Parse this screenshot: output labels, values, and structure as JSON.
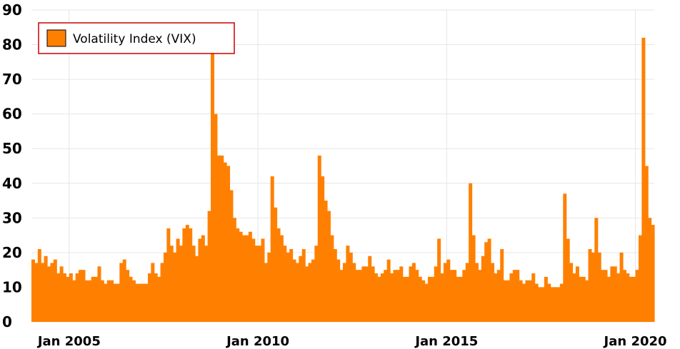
{
  "chart_data": {
    "type": "area",
    "title": "",
    "xlabel": "",
    "ylabel": "",
    "legend": {
      "placement": "top-left",
      "entries": [
        "Volatility Index (VIX)"
      ]
    },
    "grid": true,
    "ylim": [
      0,
      90
    ],
    "xlim": [
      "2004-01",
      "2020-06"
    ],
    "yticks": [
      "0",
      "10",
      "20",
      "30",
      "40",
      "50",
      "60",
      "70",
      "80",
      "90"
    ],
    "xticks": [
      {
        "label": "Jan 2005",
        "date": "2005-01"
      },
      {
        "label": "Jan 2010",
        "date": "2010-01"
      },
      {
        "label": "Jan 2015",
        "date": "2015-01"
      },
      {
        "label": "Jan 2020",
        "date": "2020-01"
      }
    ],
    "colors": {
      "series": "#ff8000",
      "legend_border": "#cc0000",
      "grid": "#e6e6e6"
    },
    "series": [
      {
        "name": "Volatility Index (VIX)",
        "x": [
          "2004-01",
          "2004-02",
          "2004-03",
          "2004-04",
          "2004-05",
          "2004-06",
          "2004-07",
          "2004-08",
          "2004-09",
          "2004-10",
          "2004-11",
          "2004-12",
          "2005-01",
          "2005-02",
          "2005-03",
          "2005-04",
          "2005-05",
          "2005-06",
          "2005-07",
          "2005-08",
          "2005-09",
          "2005-10",
          "2005-11",
          "2005-12",
          "2006-01",
          "2006-02",
          "2006-03",
          "2006-04",
          "2006-05",
          "2006-06",
          "2006-07",
          "2006-08",
          "2006-09",
          "2006-10",
          "2006-11",
          "2006-12",
          "2007-01",
          "2007-02",
          "2007-03",
          "2007-04",
          "2007-05",
          "2007-06",
          "2007-07",
          "2007-08",
          "2007-09",
          "2007-10",
          "2007-11",
          "2007-12",
          "2008-01",
          "2008-02",
          "2008-03",
          "2008-04",
          "2008-05",
          "2008-06",
          "2008-07",
          "2008-08",
          "2008-09",
          "2008-10",
          "2008-11",
          "2008-12",
          "2009-01",
          "2009-02",
          "2009-03",
          "2009-04",
          "2009-05",
          "2009-06",
          "2009-07",
          "2009-08",
          "2009-09",
          "2009-10",
          "2009-11",
          "2009-12",
          "2010-01",
          "2010-02",
          "2010-03",
          "2010-04",
          "2010-05",
          "2010-06",
          "2010-07",
          "2010-08",
          "2010-09",
          "2010-10",
          "2010-11",
          "2010-12",
          "2011-01",
          "2011-02",
          "2011-03",
          "2011-04",
          "2011-05",
          "2011-06",
          "2011-07",
          "2011-08",
          "2011-09",
          "2011-10",
          "2011-11",
          "2011-12",
          "2012-01",
          "2012-02",
          "2012-03",
          "2012-04",
          "2012-05",
          "2012-06",
          "2012-07",
          "2012-08",
          "2012-09",
          "2012-10",
          "2012-11",
          "2012-12",
          "2013-01",
          "2013-02",
          "2013-03",
          "2013-04",
          "2013-05",
          "2013-06",
          "2013-07",
          "2013-08",
          "2013-09",
          "2013-10",
          "2013-11",
          "2013-12",
          "2014-01",
          "2014-02",
          "2014-03",
          "2014-04",
          "2014-05",
          "2014-06",
          "2014-07",
          "2014-08",
          "2014-09",
          "2014-10",
          "2014-11",
          "2014-12",
          "2015-01",
          "2015-02",
          "2015-03",
          "2015-04",
          "2015-05",
          "2015-06",
          "2015-07",
          "2015-08",
          "2015-09",
          "2015-10",
          "2015-11",
          "2015-12",
          "2016-01",
          "2016-02",
          "2016-03",
          "2016-04",
          "2016-05",
          "2016-06",
          "2016-07",
          "2016-08",
          "2016-09",
          "2016-10",
          "2016-11",
          "2016-12",
          "2017-01",
          "2017-02",
          "2017-03",
          "2017-04",
          "2017-05",
          "2017-06",
          "2017-07",
          "2017-08",
          "2017-09",
          "2017-10",
          "2017-11",
          "2017-12",
          "2018-01",
          "2018-02",
          "2018-03",
          "2018-04",
          "2018-05",
          "2018-06",
          "2018-07",
          "2018-08",
          "2018-09",
          "2018-10",
          "2018-11",
          "2018-12",
          "2019-01",
          "2019-02",
          "2019-03",
          "2019-04",
          "2019-05",
          "2019-06",
          "2019-07",
          "2019-08",
          "2019-09",
          "2019-10",
          "2019-11",
          "2019-12",
          "2020-01",
          "2020-02",
          "2020-03",
          "2020-04",
          "2020-05",
          "2020-06"
        ],
        "values": [
          18,
          17,
          21,
          17,
          19,
          16,
          17,
          18,
          14,
          16,
          14,
          13,
          14,
          12,
          14,
          15,
          15,
          12,
          12,
          13,
          13,
          16,
          12,
          11,
          12,
          12,
          11,
          11,
          17,
          18,
          15,
          13,
          12,
          11,
          11,
          11,
          11,
          14,
          17,
          14,
          13,
          17,
          20,
          27,
          22,
          20,
          24,
          22,
          27,
          28,
          27,
          22,
          19,
          24,
          25,
          22,
          32,
          78,
          60,
          48,
          48,
          46,
          45,
          38,
          30,
          27,
          26,
          25,
          25,
          26,
          24,
          22,
          22,
          24,
          17,
          20,
          42,
          33,
          27,
          25,
          22,
          20,
          21,
          18,
          17,
          19,
          21,
          16,
          17,
          18,
          22,
          48,
          42,
          35,
          32,
          25,
          21,
          18,
          15,
          17,
          22,
          20,
          17,
          15,
          15,
          16,
          16,
          19,
          16,
          14,
          13,
          14,
          15,
          18,
          14,
          15,
          15,
          16,
          13,
          13,
          16,
          17,
          15,
          13,
          12,
          11,
          13,
          13,
          16,
          24,
          14,
          17,
          18,
          15,
          15,
          13,
          13,
          15,
          17,
          40,
          25,
          17,
          15,
          19,
          23,
          24,
          17,
          14,
          15,
          21,
          12,
          12,
          14,
          15,
          15,
          12,
          11,
          12,
          12,
          14,
          11,
          10,
          10,
          13,
          11,
          10,
          10,
          10,
          11,
          37,
          24,
          17,
          14,
          16,
          13,
          13,
          12,
          21,
          20,
          30,
          20,
          15,
          15,
          13,
          16,
          16,
          14,
          20,
          15,
          14,
          13,
          13,
          15,
          25,
          82,
          45,
          30,
          28
        ]
      }
    ]
  }
}
